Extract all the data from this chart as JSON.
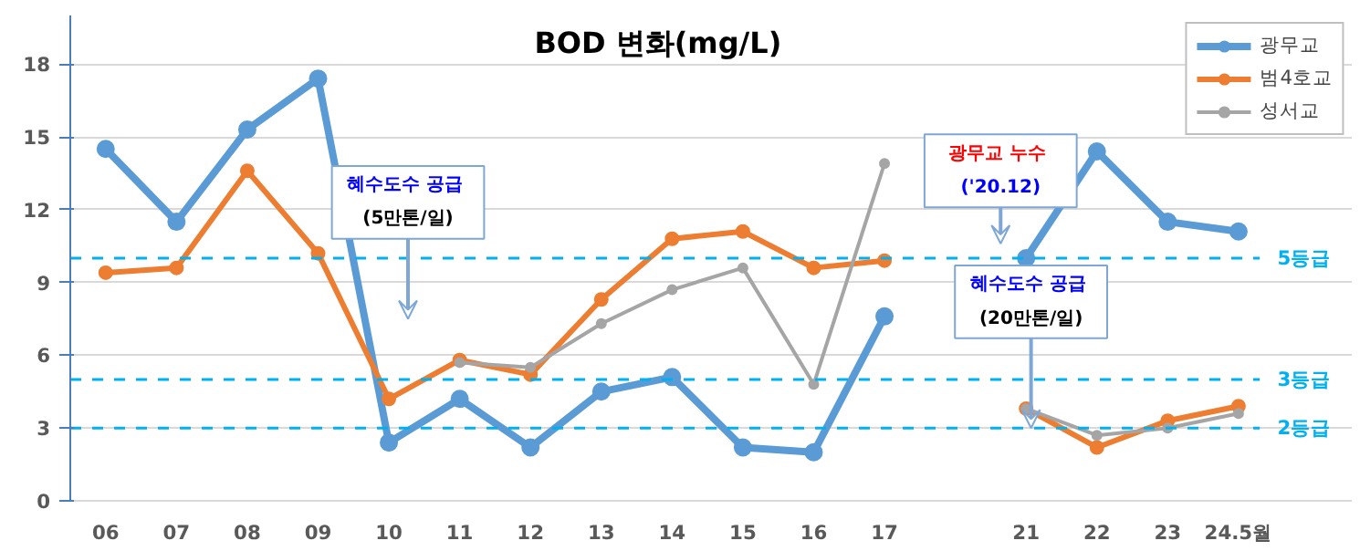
{
  "chart_data": {
    "type": "line",
    "title": "BOD 변화(mg/L)",
    "categories": [
      "06",
      "07",
      "08",
      "09",
      "10",
      "11",
      "12",
      "13",
      "14",
      "15",
      "16",
      "17",
      null,
      "21",
      "22",
      "23",
      "24.5월"
    ],
    "series": [
      {
        "name": "광무교",
        "color": "#5b9bd5",
        "values": [
          14.5,
          11.5,
          15.3,
          17.4,
          2.4,
          4.2,
          2.2,
          4.5,
          5.1,
          2.2,
          2.0,
          7.6,
          null,
          10.0,
          14.4,
          11.5,
          11.1
        ]
      },
      {
        "name": "범4호교",
        "color": "#ed7d31",
        "values": [
          9.4,
          9.6,
          13.6,
          10.2,
          4.2,
          5.8,
          5.2,
          8.3,
          10.8,
          11.1,
          9.6,
          9.9,
          null,
          3.8,
          2.2,
          3.3,
          3.9
        ]
      },
      {
        "name": "성서교",
        "color": "#a5a5a5",
        "values": [
          null,
          null,
          null,
          null,
          null,
          5.7,
          5.5,
          7.3,
          8.7,
          9.6,
          4.8,
          13.9,
          null,
          3.8,
          2.7,
          3.0,
          3.6
        ]
      }
    ],
    "ylim": [
      0,
      20
    ],
    "yticks": [
      0,
      3,
      6,
      9,
      12,
      15,
      18
    ],
    "ref_lines": [
      {
        "axis": "y",
        "value": 10,
        "label": "5등급",
        "color": "#00b0f0",
        "line_style": "dashed"
      },
      {
        "axis": "y",
        "value": 5,
        "label": "3등급",
        "color": "#00b0f0",
        "line_style": "dashed"
      },
      {
        "axis": "y",
        "value": 3,
        "label": "2등급",
        "color": "#00b0f0",
        "line_style": "dashed"
      }
    ],
    "annotations": [
      "혜수도수  공급\n(5만톤/일)",
      {
        "text": "광무교  누수\n('20.12)",
        "x": "21",
        "y": 10.6
      },
      {
        "text": "혜수도수  공급\n(20만톤/일)",
        "x": "21",
        "y": 3.0
      }
    ],
    "grid": "y",
    "legend": "top right",
    "marker": "circle",
    "line_style": "solid"
  }
}
